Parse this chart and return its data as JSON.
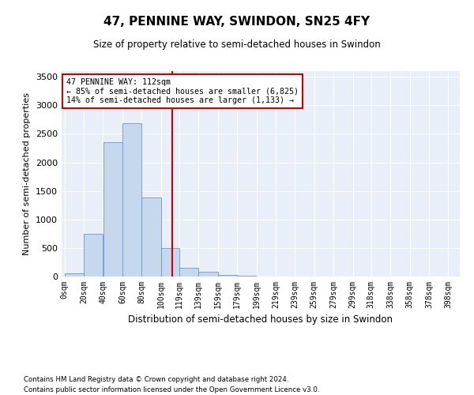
{
  "title": "47, PENNINE WAY, SWINDON, SN25 4FY",
  "subtitle": "Size of property relative to semi-detached houses in Swindon",
  "xlabel": "Distribution of semi-detached houses by size in Swindon",
  "ylabel": "Number of semi-detached properties",
  "footnote": "Contains HM Land Registry data © Crown copyright and database right 2024.\nContains public sector information licensed under the Open Government Licence v3.0.",
  "property_size": 112,
  "annotation_title": "47 PENNINE WAY: 112sqm",
  "annotation_line1": "← 85% of semi-detached houses are smaller (6,825)",
  "annotation_line2": "14% of semi-detached houses are larger (1,133) →",
  "bar_edges": [
    0,
    20,
    40,
    60,
    80,
    100,
    119,
    139,
    159,
    179,
    199,
    219,
    239,
    259,
    279,
    299,
    318,
    338,
    358,
    378,
    398
  ],
  "bar_heights": [
    50,
    750,
    2350,
    2680,
    1380,
    500,
    150,
    90,
    30,
    10,
    5,
    3,
    2,
    1,
    1,
    0,
    0,
    0,
    0,
    0
  ],
  "bar_color": "#c5d8ed",
  "bar_edge_color": "#6699cc",
  "vline_color": "#cc0000",
  "vline_x": 112,
  "annotation_box_color": "#cc0000",
  "bg_color": "#e8eff8",
  "ylim": [
    0,
    3600
  ],
  "yticks": [
    0,
    500,
    1000,
    1500,
    2000,
    2500,
    3000,
    3500
  ],
  "tick_labels": [
    "0sqm",
    "20sqm",
    "40sqm",
    "60sqm",
    "80sqm",
    "100sqm",
    "119sqm",
    "139sqm",
    "159sqm",
    "179sqm",
    "199sqm",
    "219sqm",
    "239sqm",
    "259sqm",
    "279sqm",
    "299sqm",
    "318sqm",
    "338sqm",
    "358sqm",
    "378sqm",
    "398sqm"
  ]
}
